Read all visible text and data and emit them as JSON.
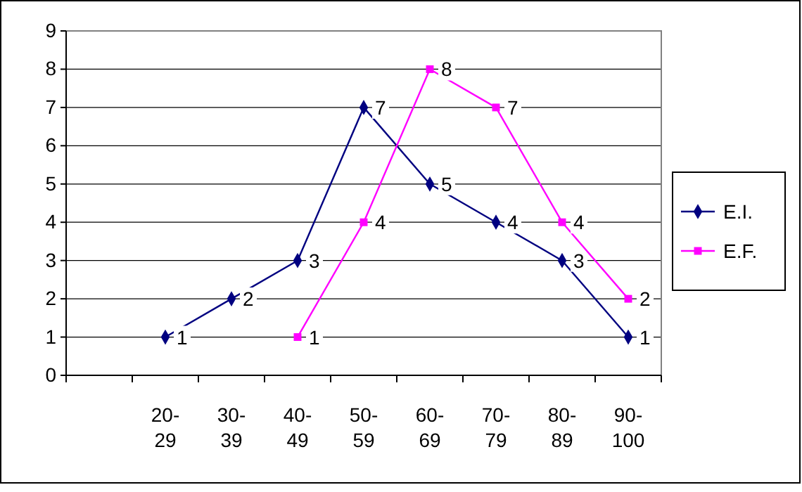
{
  "chart_data": {
    "type": "line",
    "categories": [
      null,
      "20-29",
      "30-39",
      "40-49",
      "50-59",
      "60-69",
      "70-79",
      "80-89",
      "90-100"
    ],
    "series": [
      {
        "name": "E.I.",
        "color": "#000080",
        "marker": "diamond",
        "values": [
          null,
          1,
          2,
          3,
          7,
          5,
          4,
          3,
          1
        ]
      },
      {
        "name": "E.F.",
        "color": "#ff00ff",
        "marker": "square",
        "values": [
          null,
          null,
          null,
          1,
          4,
          8,
          7,
          4,
          2
        ]
      }
    ],
    "ylim": [
      0,
      9
    ],
    "yticks": [
      0,
      1,
      2,
      3,
      4,
      5,
      6,
      7,
      8,
      9
    ],
    "grid": "y",
    "legend": "right",
    "data_labels": true
  }
}
